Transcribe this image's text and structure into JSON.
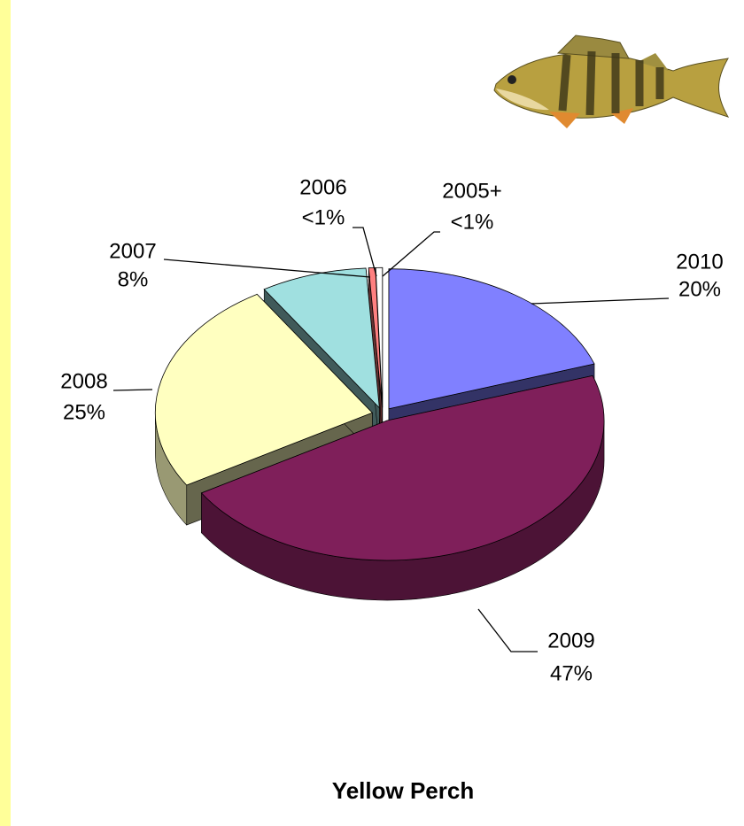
{
  "chart_data": {
    "type": "pie3d",
    "title": "Yellow Perch",
    "categories": [
      "2010",
      "2009",
      "2008",
      "2007",
      "2006",
      "2005+"
    ],
    "values": [
      20,
      47,
      25,
      8,
      0.5,
      0.5
    ],
    "value_labels": [
      "20%",
      "47%",
      "25%",
      "8%",
      "<1%",
      "<1%"
    ],
    "colors": [
      "#8080ff",
      "#7f1f5a",
      "#ffffc0",
      "#a0e0e0",
      "#ff8080",
      "#ffffff"
    ]
  }
}
